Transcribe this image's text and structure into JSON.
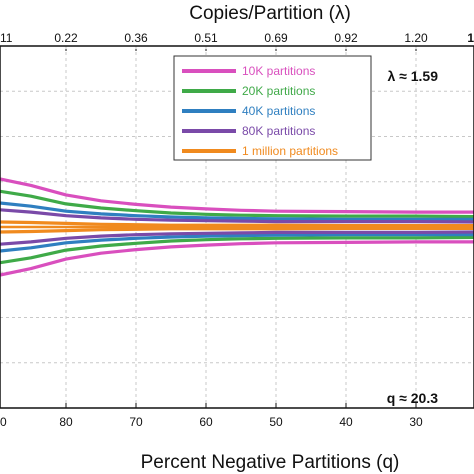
{
  "chart_data": {
    "type": "line",
    "top_axis": {
      "label": "Copies/Partition (λ)",
      "edge_label_left": "11",
      "edge_label_right": "1",
      "tick_labels": [
        "0.22",
        "0.36",
        "0.51",
        "0.69",
        "0.92",
        "1.20"
      ]
    },
    "bottom_axis": {
      "label": "Percent Negative Partitions (q)",
      "edge_label_left": "0",
      "tick_labels": [
        "80",
        "70",
        "60",
        "50",
        "40",
        "30"
      ],
      "xlim": [
        90.5,
        20.5
      ]
    },
    "ylim": [
      0,
      8
    ],
    "grid": true,
    "legend_position": "top-right",
    "annotations": {
      "lambda": "λ ≈ 1.59",
      "q": "q ≈ 20.3"
    },
    "center": 4,
    "series": [
      {
        "name": "10K partitions",
        "color": "#d94fbe",
        "upper": [
          5.06,
          4.92,
          4.71,
          4.58,
          4.5,
          4.44,
          4.4,
          4.37,
          4.35,
          4.34,
          4.33,
          4.33
        ],
        "lower": [
          2.94,
          3.08,
          3.29,
          3.42,
          3.5,
          3.56,
          3.6,
          3.63,
          3.65,
          3.66,
          3.67,
          3.67
        ]
      },
      {
        "name": "20K partitions",
        "color": "#3faa48",
        "upper": [
          4.79,
          4.68,
          4.51,
          4.42,
          4.36,
          4.31,
          4.28,
          4.26,
          4.25,
          4.24,
          4.24,
          4.23
        ],
        "lower": [
          3.21,
          3.32,
          3.49,
          3.58,
          3.64,
          3.69,
          3.72,
          3.74,
          3.75,
          3.76,
          3.76,
          3.77
        ]
      },
      {
        "name": "40K partitions",
        "color": "#2f7fc0",
        "upper": [
          4.53,
          4.46,
          4.35,
          4.29,
          4.25,
          4.22,
          4.2,
          4.19,
          4.18,
          4.17,
          4.17,
          4.17
        ],
        "lower": [
          3.47,
          3.54,
          3.65,
          3.71,
          3.75,
          3.78,
          3.8,
          3.81,
          3.82,
          3.83,
          3.83,
          3.83
        ]
      },
      {
        "name": "80K partitions",
        "color": "#7a4aa8",
        "upper": [
          4.38,
          4.33,
          4.25,
          4.2,
          4.17,
          4.15,
          4.14,
          4.13,
          4.12,
          4.12,
          4.12,
          4.11
        ],
        "lower": [
          3.62,
          3.67,
          3.75,
          3.8,
          3.83,
          3.85,
          3.86,
          3.87,
          3.88,
          3.88,
          3.88,
          3.89
        ]
      },
      {
        "name": "1 million partitions",
        "color": "#f08a1e",
        "upper": [
          4.11,
          4.1,
          4.08,
          4.06,
          4.05,
          4.04,
          4.04,
          4.04,
          4.04,
          4.03,
          4.03,
          4.03
        ],
        "lower": [
          3.89,
          3.9,
          3.92,
          3.94,
          3.95,
          3.96,
          3.96,
          3.96,
          3.96,
          3.97,
          3.97,
          3.97
        ]
      }
    ],
    "x": [
      90,
      85,
      80,
      75,
      70,
      65,
      60,
      55,
      50,
      40,
      30,
      20.5
    ]
  }
}
